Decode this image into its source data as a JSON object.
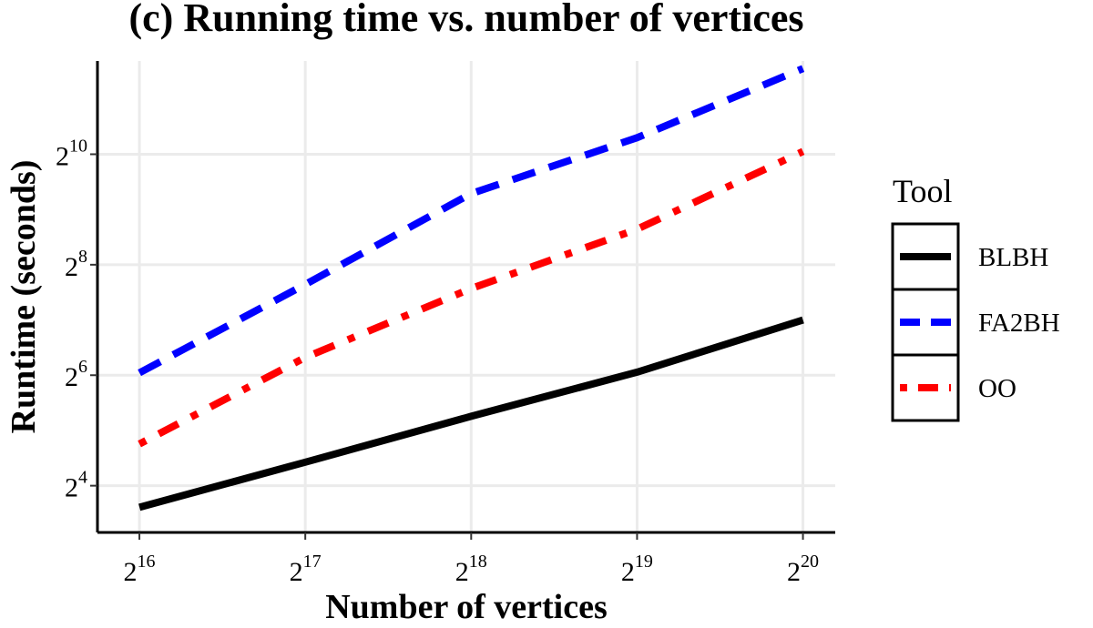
{
  "chart_data": {
    "type": "line",
    "title": "(c) Running time vs. number of vertices",
    "xlabel": "Number of vertices",
    "ylabel": "Runtime (seconds)",
    "x_scale": "log2",
    "y_scale": "log2",
    "x_ticks": [
      {
        "base": "2",
        "exp": "16",
        "value": 65536
      },
      {
        "base": "2",
        "exp": "17",
        "value": 131072
      },
      {
        "base": "2",
        "exp": "18",
        "value": 262144
      },
      {
        "base": "2",
        "exp": "19",
        "value": 524288
      },
      {
        "base": "2",
        "exp": "20",
        "value": 1048576
      }
    ],
    "y_ticks": [
      {
        "base": "2",
        "exp": "4",
        "value": 16
      },
      {
        "base": "2",
        "exp": "6",
        "value": 64
      },
      {
        "base": "2",
        "exp": "8",
        "value": 256
      },
      {
        "base": "2",
        "exp": "10",
        "value": 1024
      }
    ],
    "xlim": [
      55000,
      1200000
    ],
    "ylim": [
      8.9,
      3300
    ],
    "grid": true,
    "legend": {
      "title": "Tool",
      "position": "right"
    },
    "x": [
      65536,
      131072,
      262144,
      524288,
      1048576
    ],
    "series": [
      {
        "name": "BLBH",
        "color": "#000000",
        "dash": "solid",
        "values": [
          12.2,
          21.5,
          38.2,
          66.5,
          128
        ]
      },
      {
        "name": "FA2BH",
        "color": "#0000ff",
        "dash": "dashed",
        "values": [
          66,
          200,
          625,
          1260,
          3000
        ]
      },
      {
        "name": "OO",
        "color": "#ff0000",
        "dash": "dotdash",
        "values": [
          27,
          80,
          190,
          400,
          1060
        ]
      }
    ]
  }
}
